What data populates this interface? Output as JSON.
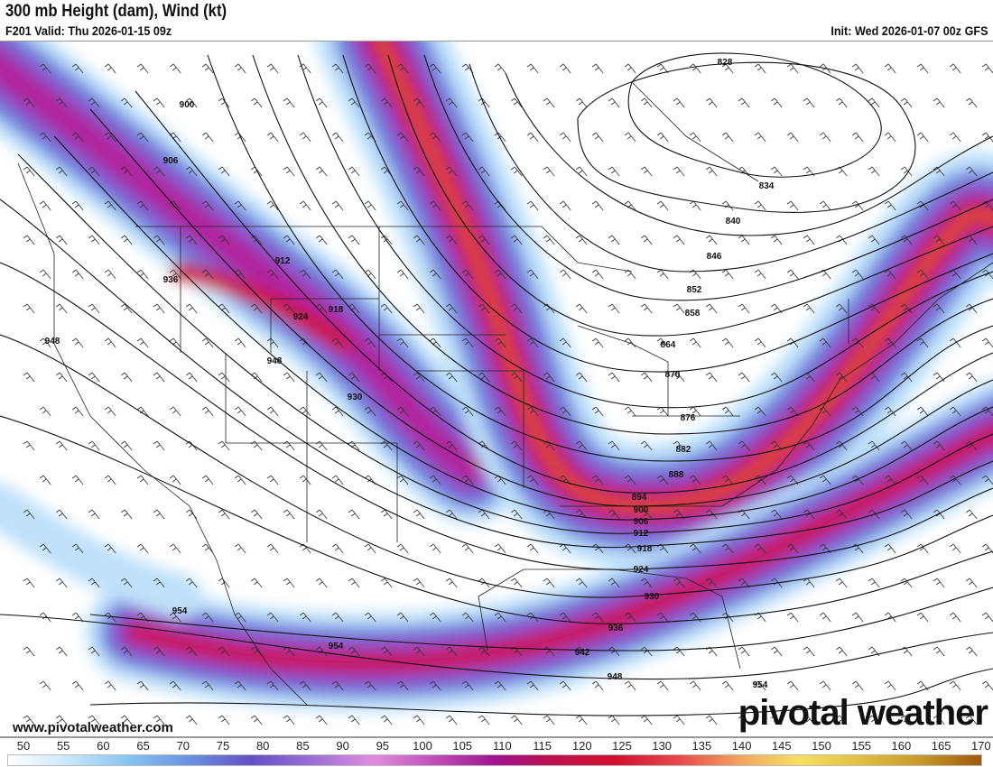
{
  "header": {
    "title": "300 mb Height (dam), Wind (kt)",
    "valid": "F201 Valid: Thu 2026-01-15 09z",
    "init": "Init: Wed 2026-01-07 00z GFS"
  },
  "map": {
    "contour_labels": [
      "828",
      "834",
      "840",
      "846",
      "852",
      "858",
      "864",
      "870",
      "876",
      "882",
      "888",
      "894",
      "900",
      "906",
      "912",
      "918",
      "924",
      "930",
      "936",
      "942",
      "948",
      "954",
      "900",
      "906",
      "912",
      "918",
      "924",
      "930",
      "936",
      "948",
      "948",
      "954",
      "954"
    ],
    "jet_colors": {
      "light": "#bfe1fa",
      "blue": "#6f86de",
      "purple": "#8a4fc9",
      "magenta": "#b0249c",
      "red": "#cf1437",
      "core": "#e85a3c"
    }
  },
  "footer": {
    "website": "www.pivotalweather.com",
    "brand": "pivotal weather"
  },
  "colorbar": {
    "ticks": [
      "50",
      "55",
      "60",
      "65",
      "70",
      "75",
      "80",
      "85",
      "90",
      "95",
      "100",
      "105",
      "110",
      "115",
      "120",
      "125",
      "130",
      "135",
      "140",
      "145",
      "150",
      "155",
      "160",
      "165",
      "170"
    ],
    "colors": [
      "#ffffff",
      "#c8e6fb",
      "#86c3f2",
      "#6a8fe0",
      "#6450c8",
      "#9a6fd8",
      "#e08ce0",
      "#c04fb8",
      "#a0138f",
      "#c0104a",
      "#d21030",
      "#e8454a",
      "#f5a060",
      "#f6e060",
      "#e0c040",
      "#c89a28",
      "#a0580a"
    ]
  }
}
